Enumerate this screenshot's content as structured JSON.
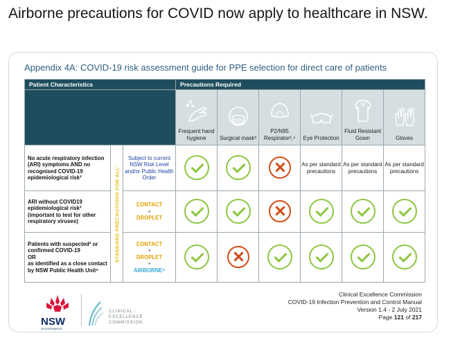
{
  "tweet": {
    "text": "Airborne precautions for COVID now apply to healthcare in NSW."
  },
  "document": {
    "title": "Appendix 4A: COVID-19 risk assessment guide for PPE selection for direct care of patients",
    "header_left": "Patient Characteristics",
    "header_right": "Precautions Required",
    "ppe_columns": [
      {
        "label": "Frequent hand hygiene",
        "icon": "hand-hygiene-icon"
      },
      {
        "label": "Surgical mask³",
        "icon": "surgical-mask-icon"
      },
      {
        "label": "P2/N95 Respirator³,⁴",
        "icon": "respirator-icon"
      },
      {
        "label": "Eye Protection",
        "icon": "eye-protection-icon"
      },
      {
        "label": "Fluid Resistant Gown",
        "icon": "gown-icon"
      },
      {
        "label": "Gloves",
        "icon": "gloves-icon"
      }
    ],
    "standard_band": "STANDARD PRECAUTIONS FOR ALL¹",
    "rows": [
      {
        "characteristics": "No acute respiratory infection (ARI) symptoms AND no recognised COVID-19 epidemiological risk²",
        "level_text": "Subject to current NSW Risk Level and/or Public Health Order",
        "marks": [
          "check",
          "check",
          "cross",
          "As per standard precautions",
          "As per standard precautions",
          "As per standard precautions"
        ]
      },
      {
        "characteristics": "ARI without COVID19 epidemiological risk² (important to test for other respiratory viruses)",
        "level": {
          "contact": "CONTACT",
          "plus1": "+",
          "droplet": "DROPLET"
        },
        "marks": [
          "check",
          "check",
          "cross",
          "check",
          "check",
          "check"
        ]
      },
      {
        "characteristics_1": "Patients with suspected² or confirmed COVID-19",
        "characteristics_or": "OR",
        "characteristics_2": "as identified as a close contact by NSW Public Health Unit⁵",
        "level": {
          "contact": "CONTACT",
          "plus1": "+",
          "droplet": "DROPLET",
          "plus2": "+",
          "airborne": "AIRBORNE⁶"
        },
        "marks": [
          "check",
          "cross",
          "check",
          "check",
          "check",
          "check"
        ]
      }
    ]
  },
  "footer": {
    "org": "Clinical Excellence Commission",
    "manual": "COVID-19 Infection Prevention and Control Manual",
    "version": "Version 1.4 - 2 July 2021",
    "page_prefix": "Page",
    "page_num": "121",
    "page_of": "of",
    "page_total": "217"
  },
  "logos": {
    "nsw": "NSW",
    "nsw_sub": "GOVERNMENT",
    "cec": "CLINICAL EXCELLENCE COMMISSION"
  },
  "colors": {
    "header_bg": "#1e4e5e",
    "check_green": "#8dc63f",
    "cross_red": "#d14b14",
    "contact_amber": "#e2a100",
    "airborne_blue": "#33a8d8",
    "band_yellow": "#e8c21d"
  }
}
